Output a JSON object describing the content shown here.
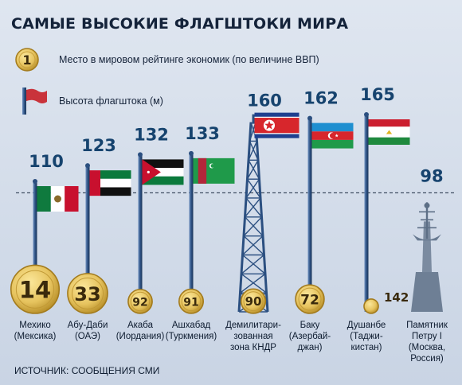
{
  "title": "САМЫЕ ВЫСОКИЕ ФЛАГШТОКИ МИРА",
  "legend": {
    "coin_symbol": "1",
    "coin_label": "Место в мировом рейтинге экономик (по величине ВВП)",
    "flag_label": "Высота флагштока (м)"
  },
  "source": "ИСТОЧНИК: СООБЩЕНИЯ СМИ",
  "colors": {
    "height_text": "#16436e",
    "pole": "#2b4f80",
    "coin_fill": "#e6c35e",
    "coin_edge": "#b38a24",
    "dashed_line": "#1a2a40"
  },
  "chart_data": {
    "type": "bar",
    "title": "САМЫЕ ВЫСОКИЕ ФЛАГШТОКИ МИРА",
    "xlabel": "",
    "ylabel": "Высота флагштока (м)",
    "ylim": [
      0,
      165
    ],
    "reference_line": 98,
    "categories": [
      {
        "label_lines": [
          "Мехико",
          "(Мексика)"
        ],
        "height": 110,
        "gdp_rank": "14",
        "flag": "mexico",
        "icon": "flagpole"
      },
      {
        "label_lines": [
          "Абу-Даби",
          "(ОАЭ)"
        ],
        "height": 123,
        "gdp_rank": "33",
        "flag": "uae",
        "icon": "flagpole"
      },
      {
        "label_lines": [
          "Акаба",
          "(Иордания)"
        ],
        "height": 132,
        "gdp_rank": "92",
        "flag": "jordan",
        "icon": "flagpole"
      },
      {
        "label_lines": [
          "Ашхабад",
          "(Туркмения)"
        ],
        "height": 133,
        "gdp_rank": "91",
        "flag": "turkmenistan",
        "icon": "flagpole"
      },
      {
        "label_lines": [
          "Демилитари-",
          "зованная",
          "зона КНДР"
        ],
        "height": 160,
        "gdp_rank": "90",
        "flag": "north-korea",
        "icon": "lattice-tower"
      },
      {
        "label_lines": [
          "Баку",
          "(Азербай-",
          "джан)"
        ],
        "height": 162,
        "gdp_rank": "72",
        "flag": "azerbaijan",
        "icon": "flagpole"
      },
      {
        "label_lines": [
          "Душанбе",
          "(Таджи-",
          "кистан)"
        ],
        "height": 165,
        "gdp_rank": "142",
        "flag": "tajikistan",
        "icon": "flagpole"
      },
      {
        "label_lines": [
          "Памятник",
          "Петру I",
          "(Москва,",
          "Россия)"
        ],
        "height": 98,
        "gdp_rank": null,
        "flag": null,
        "icon": "monument-peter-i"
      }
    ]
  }
}
